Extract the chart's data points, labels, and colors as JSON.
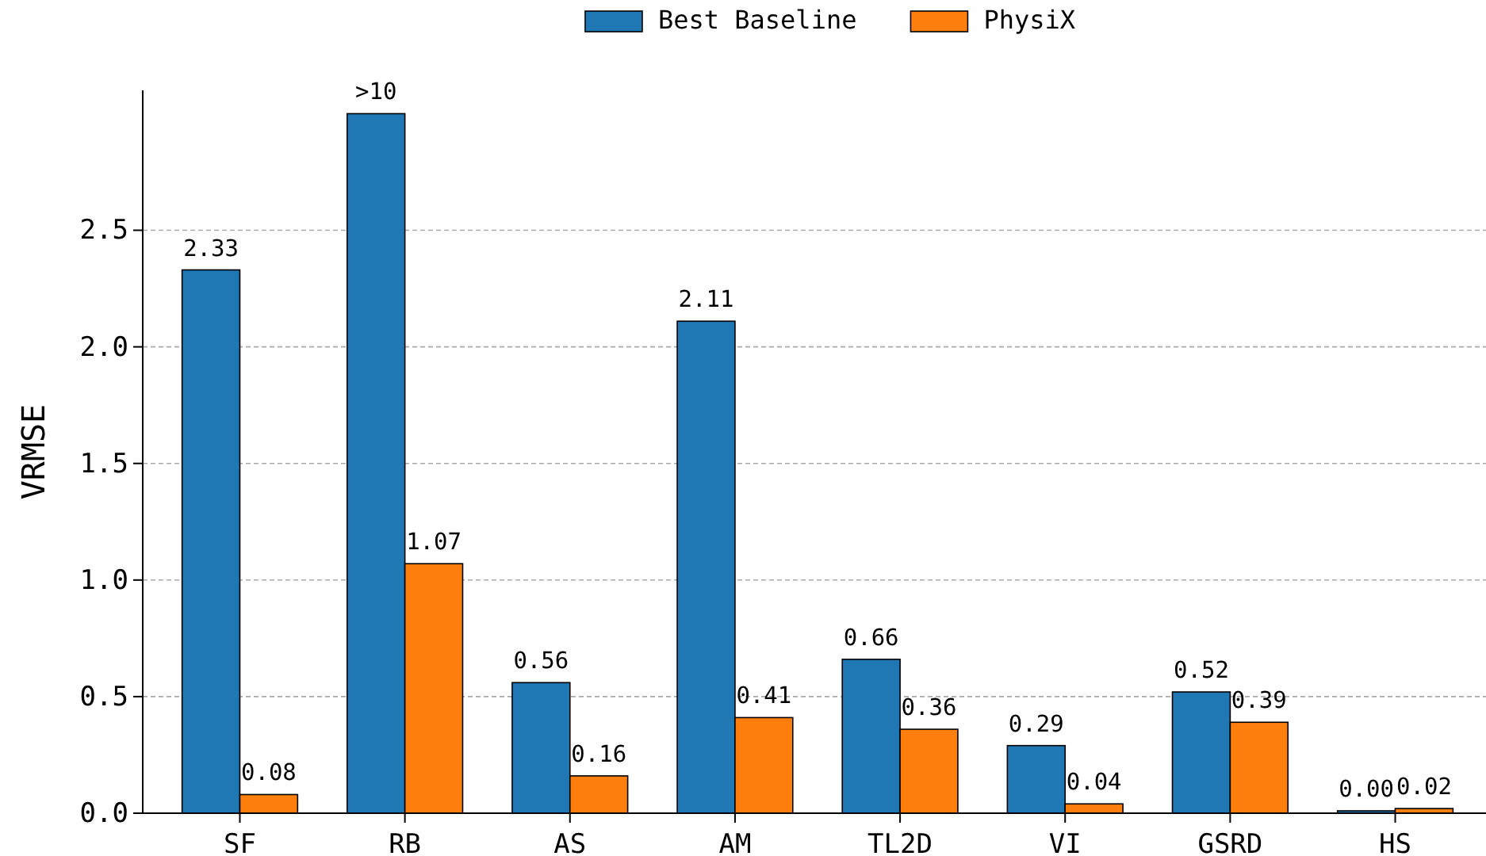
{
  "chart_data": {
    "type": "bar",
    "ylabel": "VRMSE",
    "categories": [
      "SF",
      "RB",
      "AS",
      "AM",
      "TL2D",
      "VI",
      "GSRD",
      "HS"
    ],
    "series": [
      {
        "name": "Best Baseline",
        "color": "#1f77b4",
        "values": [
          2.33,
          3.0,
          0.56,
          2.11,
          0.66,
          0.29,
          0.52,
          0.0
        ],
        "value_labels": [
          "2.33",
          ">10",
          "0.56",
          "2.11",
          "0.66",
          "0.29",
          "0.52",
          "0.00"
        ]
      },
      {
        "name": "PhysiX",
        "color": "#ff7f0e",
        "values": [
          0.08,
          1.07,
          0.16,
          0.41,
          0.36,
          0.04,
          0.39,
          0.02
        ],
        "value_labels": [
          "0.08",
          "1.07",
          "0.16",
          "0.41",
          "0.36",
          "0.04",
          "0.39",
          "0.02"
        ]
      }
    ],
    "ylim": [
      0,
      3.1
    ],
    "yticks": [
      {
        "value": 0,
        "label": "0.0"
      },
      {
        "value": 0.5,
        "label": "0.5"
      },
      {
        "value": 1,
        "label": "1.0"
      },
      {
        "value": 1.5,
        "label": "1.5"
      },
      {
        "value": 2,
        "label": "2.0"
      },
      {
        "value": 2.5,
        "label": "2.5"
      }
    ],
    "grid": "y",
    "legend": "top"
  }
}
